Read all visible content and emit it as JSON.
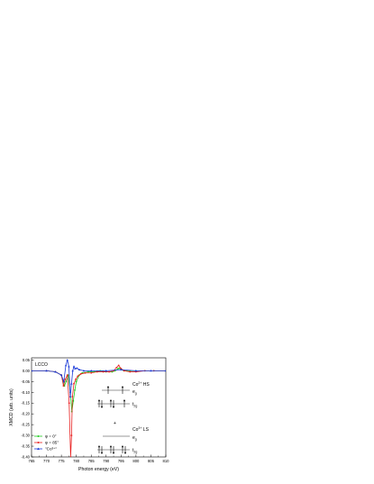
{
  "chart_data": {
    "type": "line",
    "xlabel": "Photon energy (eV)",
    "ylabel": "XMCD (arb. units)",
    "xlim": [
      765,
      810
    ],
    "ylim": [
      -0.4,
      0.06
    ],
    "xticks": [
      765,
      770,
      775,
      780,
      785,
      790,
      795,
      800,
      805,
      810
    ],
    "yticks": [
      0.05,
      0.0,
      -0.05,
      -0.1,
      -0.15,
      -0.2,
      -0.25,
      -0.3,
      -0.35,
      -0.4
    ],
    "xtick_labels": [
      "765",
      "770",
      "775",
      "780",
      "785",
      "790",
      "795",
      "800",
      "805",
      "810"
    ],
    "ytick_labels": [
      "0.05",
      "0.00",
      "-0.05",
      "-0.10",
      "-0.15",
      "-0.20",
      "-0.25",
      "-0.30",
      "-0.35",
      "-0.40"
    ],
    "sample_label": "LCCO",
    "legend_position": "bottom-left",
    "series": [
      {
        "name": "φ = 0°",
        "color": "#22cc22",
        "marker": "circle",
        "x": [
          765,
          770,
          773,
          775,
          776,
          776.6,
          777.3,
          778,
          778.5,
          779,
          779.5,
          780,
          781,
          782,
          784,
          786,
          788,
          790,
          792,
          793,
          794,
          794.5,
          795,
          796,
          798,
          800,
          803,
          806,
          810
        ],
        "y": [
          0.0,
          0.0,
          -0.005,
          -0.02,
          -0.07,
          -0.05,
          -0.02,
          -0.1,
          -0.19,
          -0.14,
          -0.09,
          -0.05,
          -0.02,
          -0.01,
          -0.005,
          -0.005,
          0.0,
          -0.005,
          -0.005,
          0.0,
          0.01,
          0.012,
          0.005,
          0.0,
          0.0,
          0.0,
          0.0,
          0.0,
          0.0
        ]
      },
      {
        "name": "φ = 85°",
        "color": "#e82020",
        "marker": "circle",
        "x": [
          765,
          770,
          773,
          775,
          775.7,
          776.3,
          777,
          777.6,
          778.1,
          778.4,
          778.7,
          779.2,
          779.8,
          780.5,
          781.5,
          783,
          785,
          787,
          789,
          791,
          792.5,
          793.5,
          794.2,
          795,
          796,
          798,
          800,
          803,
          806,
          810
        ],
        "y": [
          0.0,
          0.0,
          -0.005,
          -0.02,
          -0.07,
          -0.04,
          -0.02,
          -0.15,
          -0.4,
          -0.3,
          -0.12,
          -0.06,
          -0.04,
          -0.025,
          -0.015,
          -0.01,
          -0.01,
          -0.005,
          -0.005,
          -0.005,
          0.0,
          0.015,
          0.025,
          0.01,
          0.0,
          -0.005,
          -0.005,
          0.0,
          0.0,
          0.0
        ]
      },
      {
        "name": "\"Co³⁺\"",
        "color": "#1a3ad8",
        "marker": "triangle",
        "x": [
          765,
          770,
          773,
          775,
          775.8,
          776.5,
          777,
          777.5,
          778,
          778.4,
          778.8,
          779.2,
          779.6,
          780.2,
          781,
          782.5,
          785,
          790,
          795,
          800,
          805,
          810
        ],
        "y": [
          0.0,
          0.0,
          -0.005,
          -0.02,
          -0.05,
          0.025,
          0.05,
          0.02,
          -0.12,
          -0.06,
          0.0,
          0.02,
          0.01,
          0.012,
          0.005,
          0.0,
          0.0,
          0.0,
          0.005,
          0.0,
          0.0,
          0.0
        ]
      }
    ],
    "annotations": {
      "hs_label_main": "Co",
      "hs_label_sup": "2+",
      "hs_label_tail": " HS",
      "ls_label_main": "Co",
      "ls_label_sup": "3+",
      "ls_label_tail": " LS",
      "eg": "e",
      "eg_sub": "g",
      "t2g": "t",
      "t2g_sub": "2g",
      "plus_sign": "+"
    }
  }
}
